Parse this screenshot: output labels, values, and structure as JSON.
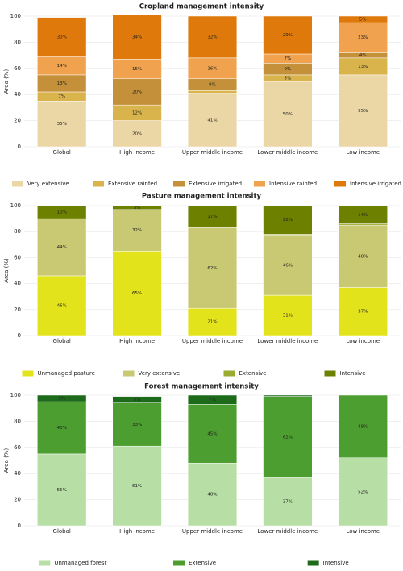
{
  "chart_data": [
    {
      "type": "bar",
      "stacked": true,
      "title": "Cropland management intensity",
      "y_label": "Area (%)",
      "categories": [
        "Global",
        "High income",
        "Upper middle income",
        "Lower middle income",
        "Low income"
      ],
      "ylim": [
        0,
        100
      ],
      "yticks": [
        0,
        20,
        40,
        60,
        80,
        100
      ],
      "grid": true,
      "legend": "bottom",
      "series": [
        {
          "name": "Very extensive",
          "color": "#ebd7a5",
          "values": [
            35,
            20,
            41,
            50,
            55
          ],
          "value_labels": [
            "35%",
            "20%",
            "41%",
            "50%",
            "55%"
          ]
        },
        {
          "name": "Extensive rainfed",
          "color": "#d9b44c",
          "values": [
            7,
            12,
            2,
            5,
            13
          ],
          "value_labels": [
            "7%",
            "12%",
            null,
            "5%",
            "13%"
          ]
        },
        {
          "name": "Extensive irrigated",
          "color": "#c4913a",
          "values": [
            13,
            20,
            9,
            9,
            4
          ],
          "value_labels": [
            "13%",
            "20%",
            "9%",
            "9%",
            "4%"
          ]
        },
        {
          "name": "Intensive rainfed",
          "color": "#f0a24e",
          "values": [
            14,
            15,
            16,
            7,
            23
          ],
          "value_labels": [
            "14%",
            "15%",
            "16%",
            "7%",
            "23%"
          ]
        },
        {
          "name": "Intensive irrigated",
          "color": "#df790b",
          "values": [
            30,
            34,
            32,
            29,
            5
          ],
          "value_labels": [
            "30%",
            "34%",
            "32%",
            "29%",
            "5%"
          ]
        }
      ]
    },
    {
      "type": "bar",
      "stacked": true,
      "title": "Pasture management intensity",
      "y_label": "Area (%)",
      "categories": [
        "Global",
        "High income",
        "Upper middle income",
        "Lower middle income",
        "Low income"
      ],
      "ylim": [
        0,
        100
      ],
      "yticks": [
        0,
        20,
        40,
        60,
        80,
        100
      ],
      "grid": true,
      "legend": "bottom",
      "series": [
        {
          "name": "Unmanaged pasture",
          "color": "#e3e31c",
          "values": [
            46,
            65,
            21,
            31,
            37
          ],
          "value_labels": [
            "46%",
            "65%",
            "21%",
            "31%",
            "37%"
          ]
        },
        {
          "name": "Very extensive",
          "color": "#c9c974",
          "values": [
            44,
            32,
            62,
            46,
            48
          ],
          "value_labels": [
            "44%",
            "32%",
            "62%",
            "46%",
            "48%"
          ]
        },
        {
          "name": "Extensive",
          "color": "#9aab30",
          "values": [
            0,
            0,
            0,
            1,
            1
          ],
          "value_labels": [
            null,
            null,
            null,
            null,
            null
          ]
        },
        {
          "name": "Intensive",
          "color": "#6e8000",
          "values": [
            10,
            3,
            17,
            22,
            14
          ],
          "value_labels": [
            "10%",
            "3%",
            "17%",
            "22%",
            "14%"
          ]
        }
      ]
    },
    {
      "type": "bar",
      "stacked": true,
      "title": "Forest management intensity",
      "y_label": "Area (%)",
      "categories": [
        "Global",
        "High income",
        "Upper middle income",
        "Lower middle income",
        "Low income"
      ],
      "ylim": [
        0,
        100
      ],
      "yticks": [
        0,
        20,
        40,
        60,
        80,
        100
      ],
      "grid": true,
      "legend": "bottom",
      "series": [
        {
          "name": "Unmanaged forest",
          "color": "#b7dea5",
          "values": [
            55,
            61,
            48,
            37,
            52
          ],
          "value_labels": [
            "55%",
            "61%",
            "48%",
            "37%",
            "52%"
          ]
        },
        {
          "name": "Extensive",
          "color": "#4c9e31",
          "values": [
            40,
            33,
            45,
            62,
            48
          ],
          "value_labels": [
            "40%",
            "33%",
            "45%",
            "62%",
            "48%"
          ]
        },
        {
          "name": "Intensive",
          "color": "#1e6a1b",
          "values": [
            5,
            5,
            7,
            1,
            0
          ],
          "value_labels": [
            "5%",
            "5%",
            "7%",
            null,
            null
          ]
        }
      ]
    }
  ]
}
